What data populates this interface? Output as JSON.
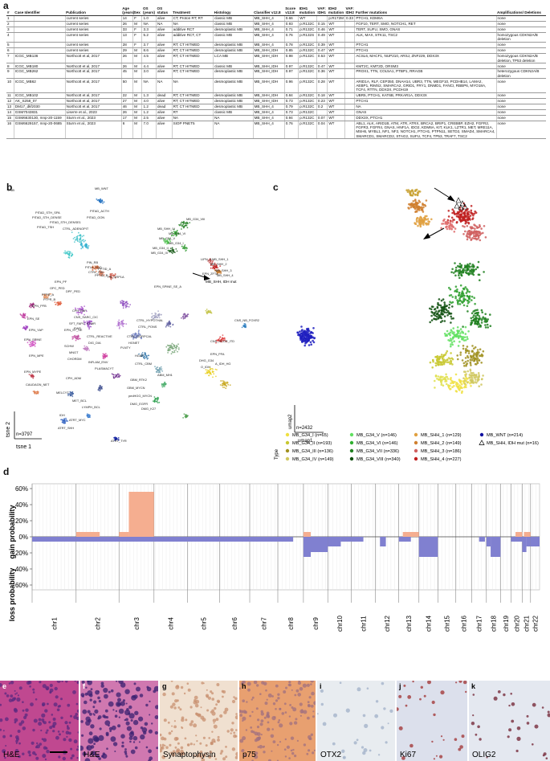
{
  "panels": {
    "a": "a",
    "b": "b",
    "c": "c",
    "d": "d",
    "e": "e",
    "f": "f",
    "g": "g",
    "h": "h",
    "i": "i",
    "j": "j",
    "k": "k"
  },
  "table": {
    "headers": [
      "#",
      "Case Identifier",
      "Publication",
      "Age (years)",
      "Sex",
      "OS (years)",
      "OS status",
      "Treatment",
      "Histology",
      "Classifier v12.8",
      "Score v12.8",
      "IDH1 mutation",
      "VAF: IDH1",
      "IDH2 mutation",
      "VAF: IDH2",
      "Further mutations",
      "Amplifications/ Deletions"
    ],
    "rows": [
      [
        "1",
        "",
        "current series",
        "14",
        "F",
        "1.0",
        "alive",
        "CT; Proton RT; RT",
        "classic MB",
        "MB_SHH_4",
        "0.66",
        "WT",
        "",
        "p.R172M",
        "0.33",
        "PTCH1, KDM6A",
        "none"
      ],
      [
        "2",
        "",
        "current series",
        "26",
        "M",
        "NA",
        "NA",
        "NA",
        "classic MB",
        "MB_SHH_4",
        "0.93",
        "p.R132C",
        "0.15",
        "WT",
        "",
        "FGF10, TERT, SMO, NOTCH1, RET",
        "none"
      ],
      [
        "3",
        "",
        "current series",
        "33",
        "F",
        "3.3",
        "alive",
        "additive RCT",
        "desmoplastic MB",
        "MB_SHH_4",
        "0.71",
        "p.R132C",
        "0.46",
        "WT",
        "",
        "TERT, SUFU, SMO, GNAS",
        "none"
      ],
      [
        "4",
        "",
        "current series",
        "13",
        "F",
        "5.2",
        "alive",
        "additive RCT, CT",
        "classic MB",
        "MB_SHH_4",
        "0.76",
        "p.R132S",
        "0.49",
        "WT",
        "",
        "ALK, MAX, STK11, TSC2",
        "homozygous CDKN2A/B deletion"
      ],
      [
        "5",
        "",
        "current series",
        "28",
        "F",
        "3.7",
        "alive",
        "RT; CT HITMED",
        "desmoplastic MB",
        "MB_SHH_4",
        "0.78",
        "p.R132C",
        "0.39",
        "WT",
        "",
        "PTCH1",
        "none"
      ],
      [
        "6",
        "",
        "current series",
        "29",
        "M",
        "8.6",
        "alive",
        "RT; CT HITMED",
        "desmoplastic MB",
        "MB_SHH_IDH",
        "0.85",
        "p.R132C",
        "0.47",
        "WT",
        "",
        "PTCH1",
        "none"
      ],
      [
        "7",
        "ICGC_MB136",
        "Northcott et al, 2017",
        "26",
        "M",
        "4.5",
        "alive",
        "RT; CT HITMED",
        "LCA MB",
        "MB_SHH_IDH",
        "0.98",
        "p.R132C",
        "0.53",
        "WT",
        "",
        "ACSL6, MACF1, NUP210, ARSJ, ZNF229, DDX3X",
        "homozygous CDKN2A/B deletion, TP53 deletion"
      ],
      [
        "8",
        "ICGC_MB180",
        "Northcott et al, 2017",
        "26",
        "M",
        "4.4",
        "alive",
        "RT; CT HITMED",
        "classic MB",
        "MB_SHH_IDH",
        "0.97",
        "p.R132C",
        "0.47",
        "WT",
        "",
        "KMT2C, KMT2D, ORSM3",
        "none"
      ],
      [
        "9",
        "ICGC_MB262",
        "Northcott et al, 2017",
        "45",
        "M",
        "3.0",
        "alive",
        "RT; CT HITMED",
        "desmoplastic MB",
        "MB_SHH_IDH",
        "0.97",
        "p.R132C",
        "0.36",
        "WT",
        "",
        "PROX1, TTN, COL5A1, PTBP1, RRAGB",
        "heterozygous CDKN2A/B deletion"
      ],
      [
        "10",
        "ICGC_MB62",
        "Northcott et al, 2017",
        "50",
        "M",
        "NA",
        "NA",
        "NA",
        "desmoplastic MB",
        "MB_SHH_IDH",
        "0.96",
        "p.R132C",
        "0.28",
        "WT",
        "",
        "ARID1A, RLF, CEP350, DNAH14, UBR3, TTN, MEGF10, PCDHB14, LAMA2, AEBP1, RIMS2, SMARCA2, GRID1, FRY1, DNMD1, FANCI, RBBP6, MYO18A, TCF4, RTTN, DDX3X, PCDH19",
        "none"
      ],
      [
        "11",
        "ICGC_MB102",
        "Northcott et al, 2017",
        "22",
        "M",
        "1.3",
        "dead",
        "RT; CT HITMED",
        "desmoplastic MB",
        "MB_SHH_IDH",
        "0.84",
        "p.R132C",
        "0.18",
        "WT",
        "",
        "UBR5, PTCH1, KAT6B, PRKAR1A, DDX3X",
        "none"
      ],
      [
        "12",
        "AK_S258_07",
        "Northcott et al, 2017",
        "27",
        "M",
        "4.0",
        "alive",
        "RT; CT HITMED",
        "desmoplastic MB",
        "MB_SHH_IDH",
        "0.73",
        "p.R132C",
        "0.23",
        "WT",
        "",
        "PTCH1",
        "none"
      ],
      [
        "13",
        "DM17_dkfz030",
        "Northcott et al, 2017",
        "46",
        "M",
        "1.2",
        "dead",
        "RT; CT HITMED",
        "desmoplastic MB",
        "MB_SHH_4",
        "0.79",
        "p.R132C",
        "0.2",
        "WT",
        "",
        "NA",
        "none"
      ],
      [
        "14",
        "GSM7043831",
        "Liserre et al., 2023",
        "26",
        "M",
        "1.2",
        "alive",
        "RT",
        "classic MB",
        "MB_SHH_4",
        "0.73",
        "p.R132C",
        "",
        "WT",
        "",
        "GNAS",
        "none"
      ],
      [
        "15",
        "GSM6630130, mnp-20-1159",
        "Sturm et al., 2023",
        "17",
        "M",
        "2.5",
        "alive",
        "NA",
        "NA",
        "MB_SHH_4",
        "0.94",
        "p.R132C",
        "0.07",
        "WT",
        "",
        "DDX3X, PTCH1",
        "none"
      ],
      [
        "16",
        "GSM6629157, mnp-20-0685",
        "Sturm et al., 2023",
        "6",
        "M",
        "7.0",
        "alive",
        "SIOP PNET5",
        "NA",
        "MB_SHH_4",
        "0.76",
        "p.R132C",
        "0.04",
        "WT",
        "",
        "ABL1, ALK, ARID1B, ATM, ATR, ATRX, BRCA2, BRIP1, CREBBP, EZH2, FGFR2, FGFR3, FGFR4, GNAS, HNF1A, IDO2, KDM6A, KIT, KLK1, LZTR1, MET, MRE11A, MSH6, MYBL1, NF1, NF2, NOTCH1, PTCH1, PTPN11, SETD2, SMAD4, SMARCA4, SMARCD1, SMARCD2, STAG2, SUFU, TCF4, TP53, TRAF7, TSC2",
        "none"
      ]
    ]
  },
  "tsne": {
    "n_label": "n=3797",
    "xlabel": "tsne 1",
    "ylabel": "tsne 2",
    "cluster_labels": [
      {
        "text": "PITAD_STH_SPA",
        "c": "#3fb8c8"
      },
      {
        "text": "PITAD_ACTH",
        "c": "#3fb8c8"
      },
      {
        "text": "PITAD_STH_DENSE",
        "c": "#3fb8c8"
      },
      {
        "text": "PITAD_GON",
        "c": "#3fb8c8"
      },
      {
        "text": "PITAD_STH_DENSE1",
        "c": "#3fb8c8"
      },
      {
        "text": "PITAD_TSH",
        "c": "#3fb8c8"
      },
      {
        "text": "CTRL_ADENOPIT",
        "c": "#3fb8c8"
      },
      {
        "text": "MB_G34_VIII",
        "c": "#2e8b2e"
      },
      {
        "text": "MB_SHH_IV",
        "c": "#2e8b2e"
      },
      {
        "text": "MB_G34_VI",
        "c": "#2e8b2e"
      },
      {
        "text": "MB_G34_V",
        "c": "#2e8b2e"
      },
      {
        "text": "MB_G34_I",
        "c": "#2e8b2e"
      },
      {
        "text": "MB_G34_II",
        "c": "#2e8b2e"
      },
      {
        "text": "MB_G34_III",
        "c": "#2e8b2e"
      },
      {
        "text": "PIN_RB",
        "c": "#e07050"
      },
      {
        "text": "PITUI_SCO",
        "c": "#e07050"
      },
      {
        "text": "CTRL_PIN",
        "c": "#e07050"
      },
      {
        "text": "PPTID_A",
        "c": "#e07050"
      },
      {
        "text": "PPTID_B",
        "c": "#e07050"
      },
      {
        "text": "PB_GRP1A",
        "c": "#e07050"
      },
      {
        "text": "EPN_PF",
        "c": "#e07050"
      },
      {
        "text": "OPC_PED",
        "c": "#e07050"
      },
      {
        "text": "DPF_PED",
        "c": "#e07050"
      },
      {
        "text": "PTPR_A",
        "c": "#e07050"
      },
      {
        "text": "PTPR_B",
        "c": "#e07050"
      },
      {
        "text": "EPN_MPE",
        "c": "#e07050"
      },
      {
        "text": "EPN_SPINE_SE_A",
        "c": "#e07050"
      },
      {
        "text": "EPN_ZFTA",
        "c": "#e07050"
      },
      {
        "text": "LIPN_A",
        "c": "#e07050"
      },
      {
        "text": "MB_SHH_1",
        "c": "#c03020"
      },
      {
        "text": "MB_SHH_2",
        "c": "#c03020"
      },
      {
        "text": "MB_SHH_3",
        "c": "#c03020"
      },
      {
        "text": "MB_SHH_4",
        "c": "#c03020"
      },
      {
        "text": "MB_SHH, IDH mut",
        "c": "#000000"
      },
      {
        "text": "EPN_PFB",
        "c": "#e07050"
      },
      {
        "text": "EPN_SE",
        "c": "#e07050"
      },
      {
        "text": "EPN_YAP",
        "c": "#e07050"
      },
      {
        "text": "CPH_PAP",
        "c": "#9040c0"
      },
      {
        "text": "CNS_SARC_CIC",
        "c": "#9040c0"
      },
      {
        "text": "SFT_FAPC",
        "c": "#9040c0"
      },
      {
        "text": "EWS",
        "c": "#9040c0"
      },
      {
        "text": "ETMR",
        "c": "#9040c0"
      },
      {
        "text": "EPN_ST_SE",
        "c": "#9040c0"
      },
      {
        "text": "CTRL_REACTIVE",
        "c": "#9040c0"
      },
      {
        "text": "DIG_DIA",
        "c": "#9040c0"
      },
      {
        "text": "SCHW",
        "c": "#9040c0"
      },
      {
        "text": "MNGT",
        "c": "#9040c0"
      },
      {
        "text": "CHORDM",
        "c": "#9040c0"
      },
      {
        "text": "INFLAM_ENV",
        "c": "#9040c0"
      },
      {
        "text": "PLASMACYT",
        "c": "#9040c0"
      },
      {
        "text": "CPH_ADM",
        "c": "#9040c0"
      },
      {
        "text": "EPN_SPINE",
        "c": "#9040c0"
      },
      {
        "text": "EPN_MYPE",
        "c": "#e07050"
      },
      {
        "text": "CAUDAGN_NET",
        "c": "#e07050"
      },
      {
        "text": "MELCYT",
        "c": "#9040c0"
      },
      {
        "text": "MET_BCL",
        "c": "#9040c0"
      },
      {
        "text": "LYMPH_BCL",
        "c": "#9040c0"
      },
      {
        "text": "CTRL_HYPOTHAL",
        "c": "#9040c0"
      },
      {
        "text": "CTRL_PONS",
        "c": "#9040c0"
      },
      {
        "text": "CTRL_CORPCAL",
        "c": "#9040c0"
      },
      {
        "text": "HGNET",
        "c": "#9040c0"
      },
      {
        "text": "PLNTY",
        "c": "#9040c0"
      },
      {
        "text": "HGAP",
        "c": "#9040c0"
      },
      {
        "text": "CTRL_CBM",
        "c": "#9040c0"
      },
      {
        "text": "CNS_SCOR_ITD",
        "c": "#2e8b2e"
      },
      {
        "text": "ABM_MH1",
        "c": "#2e8b2e"
      },
      {
        "text": "CNS_NB_FOXR2",
        "c": "#2e8b2e"
      },
      {
        "text": "EPN_PFA",
        "c": "#e07050"
      },
      {
        "text": "GBM_RTK2",
        "c": "#2e8b2e"
      },
      {
        "text": "GBM_MYCN",
        "c": "#2e8b2e"
      },
      {
        "text": "pedHGG_MYCN",
        "c": "#2e8b2e"
      },
      {
        "text": "DMG_EGFR",
        "c": "#2e8b2e"
      },
      {
        "text": "DMG_K27",
        "c": "#2e8b2e"
      },
      {
        "text": "DHG_G34",
        "c": "#2e8b2e"
      },
      {
        "text": "A_IDH_HG",
        "c": "#c8a020"
      },
      {
        "text": "O_IDH",
        "c": "#c8a020"
      },
      {
        "text": "IDH",
        "c": "#c8a020"
      },
      {
        "text": "ATRT_MYC",
        "c": "#3060c0"
      },
      {
        "text": "ATRT_SHH",
        "c": "#3060c0"
      },
      {
        "text": "ATRT_TYR",
        "c": "#3060c0"
      },
      {
        "text": "MB_WNT",
        "c": "#3060c0"
      },
      {
        "text": "ENB",
        "c": "#3060c0"
      }
    ]
  },
  "umap": {
    "n_label": "n=2432",
    "xlabel": "umap1",
    "ylabel": "umap2"
  },
  "legend": {
    "title": "Type",
    "items": [
      {
        "label": "MB_G34_I (n=65)",
        "color": "#f0e040",
        "shape": "dot"
      },
      {
        "label": "MB_G34_II (n=193)",
        "color": "#c8c830",
        "shape": "dot"
      },
      {
        "label": "MB_G34_III (n=136)",
        "color": "#a09020",
        "shape": "dot"
      },
      {
        "label": "MB_G34_IV (n=149)",
        "color": "#d0c860",
        "shape": "dot"
      },
      {
        "label": "MB_G34_V (n=146)",
        "color": "#60e060",
        "shape": "dot"
      },
      {
        "label": "MB_G34_VI (n=146)",
        "color": "#30b030",
        "shape": "dot"
      },
      {
        "label": "MB_G34_VII (n=336)",
        "color": "#208020",
        "shape": "dot"
      },
      {
        "label": "MB_G34_VIII (n=340)",
        "color": "#105010",
        "shape": "dot"
      },
      {
        "label": "MB_SHH_1 (n=129)",
        "color": "#e0a040",
        "shape": "dot"
      },
      {
        "label": "MB_SHH_2 (n=149)",
        "color": "#d08030",
        "shape": "dot"
      },
      {
        "label": "MB_SHH_3 (n=186)",
        "color": "#d06060",
        "shape": "dot"
      },
      {
        "label": "MB_SHH_4 (n=227)",
        "color": "#c02020",
        "shape": "dot"
      },
      {
        "label": "MB_WNT (n=214)",
        "color": "#1010a0",
        "shape": "dot"
      },
      {
        "label": "MB_SHH, IDH mut (n=16)",
        "color": "#000000",
        "shape": "triangle"
      }
    ]
  },
  "cnv": {
    "ylabel_gain": "gain probability",
    "ylabel_loss": "loss probability",
    "gain_color": "#f5ae90",
    "loss_color": "#8080d0"
  },
  "chart_data": {
    "type": "bar",
    "title": "",
    "xlabel": "",
    "ylabel": "gain probability / loss probability",
    "ylim": [
      -0.6,
      0.6
    ],
    "yticks": [
      "60%",
      "40%",
      "20%",
      "0%",
      "20%",
      "40%",
      "60%"
    ],
    "categories": [
      "chr1",
      "chr2",
      "chr3",
      "chr4",
      "chr5",
      "chr6",
      "chr7",
      "chr8",
      "chr9",
      "chr10",
      "chr11",
      "chr12",
      "chr13",
      "chr14",
      "chr15",
      "chr16",
      "chr17",
      "chr18",
      "chr19",
      "chr20",
      "chr21",
      "chr22"
    ],
    "chromosome_sizes": [
      249,
      243,
      198,
      190,
      181,
      171,
      159,
      145,
      138,
      134,
      135,
      133,
      114,
      107,
      102,
      90,
      83,
      80,
      59,
      64,
      47,
      51
    ],
    "series": [
      {
        "name": "gain",
        "segments": [
          {
            "chr": "chr2",
            "start": 0.0,
            "end": 0.55,
            "value": 0.06
          },
          {
            "chr": "chr3",
            "start": 0.0,
            "end": 0.28,
            "value": 0.06
          },
          {
            "chr": "chr3",
            "start": 0.28,
            "end": 1.0,
            "value": 0.56
          },
          {
            "chr": "chr9",
            "start": 0.0,
            "end": 0.3,
            "value": 0.06
          },
          {
            "chr": "chr13",
            "start": 0.2,
            "end": 1.0,
            "value": 0.06
          },
          {
            "chr": "chr20",
            "start": 0.4,
            "end": 1.0,
            "value": 0.06
          },
          {
            "chr": "chr21",
            "start": 0.2,
            "end": 1.0,
            "value": 0.06
          }
        ]
      },
      {
        "name": "loss",
        "segments": [
          {
            "chr": "chr1",
            "start": 0.0,
            "end": 1.0,
            "value": -0.06
          },
          {
            "chr": "chr2",
            "start": 0.0,
            "end": 1.0,
            "value": -0.06
          },
          {
            "chr": "chr3",
            "start": 0.0,
            "end": 1.0,
            "value": -0.06
          },
          {
            "chr": "chr4",
            "start": 0.0,
            "end": 1.0,
            "value": -0.06
          },
          {
            "chr": "chr5",
            "start": 0.0,
            "end": 1.0,
            "value": -0.06
          },
          {
            "chr": "chr6",
            "start": 0.0,
            "end": 1.0,
            "value": -0.06
          },
          {
            "chr": "chr7",
            "start": 0.0,
            "end": 1.0,
            "value": -0.06
          },
          {
            "chr": "chr8",
            "start": 0.0,
            "end": 0.6,
            "value": -0.06
          },
          {
            "chr": "chr9",
            "start": 0.0,
            "end": 0.3,
            "value": -0.25
          },
          {
            "chr": "chr9",
            "start": 0.3,
            "end": 1.0,
            "value": -0.19
          },
          {
            "chr": "chr10",
            "start": 0.0,
            "end": 0.55,
            "value": -0.12
          },
          {
            "chr": "chr10",
            "start": 0.55,
            "end": 1.0,
            "value": -0.06
          },
          {
            "chr": "chr11",
            "start": 0.0,
            "end": 0.5,
            "value": -0.06
          },
          {
            "chr": "chr12",
            "start": 0.2,
            "end": 0.45,
            "value": -0.12
          },
          {
            "chr": "chr13",
            "start": 0.0,
            "end": 0.6,
            "value": -0.06
          },
          {
            "chr": "chr14",
            "start": 0.0,
            "end": 1.0,
            "value": -0.25
          },
          {
            "chr": "chr17",
            "start": 0.5,
            "end": 0.9,
            "value": -0.06
          },
          {
            "chr": "chr18",
            "start": 0.0,
            "end": 0.3,
            "value": -0.12
          },
          {
            "chr": "chr18",
            "start": 0.3,
            "end": 1.0,
            "value": -0.25
          },
          {
            "chr": "chr20",
            "start": 0.0,
            "end": 1.0,
            "value": -0.06
          },
          {
            "chr": "chr21",
            "start": 0.0,
            "end": 0.5,
            "value": -0.19
          },
          {
            "chr": "chr21",
            "start": 0.5,
            "end": 1.0,
            "value": -0.12
          },
          {
            "chr": "chr22",
            "start": 0.0,
            "end": 1.0,
            "value": -0.12
          }
        ]
      }
    ]
  },
  "micrographs": [
    {
      "letter": "e",
      "label": "H&E",
      "bg": "#c04890",
      "dot": "#5a2a80",
      "scale_bar": true
    },
    {
      "letter": "f",
      "label": "H&E",
      "bg": "#d078b0",
      "dot": "#3a2070",
      "scale_bar": false
    },
    {
      "letter": "g",
      "label": "Synaptophysin",
      "bg": "#f0e0d0",
      "dot": "#c89070",
      "scale_bar": false
    },
    {
      "letter": "h",
      "label": "p75",
      "bg": "#e8a070",
      "dot": "#a07080",
      "scale_bar": false
    },
    {
      "letter": "i",
      "label": "OTX2",
      "bg": "#e8ecf0",
      "dot": "#a0b0c8",
      "scale_bar": false
    },
    {
      "letter": "j",
      "label": "Ki67",
      "bg": "#dce0ec",
      "dot": "#a03030",
      "scale_bar": false
    },
    {
      "letter": "k",
      "label": "OLIG2",
      "bg": "#e4e8f0",
      "dot": "#702030",
      "scale_bar": false
    }
  ]
}
